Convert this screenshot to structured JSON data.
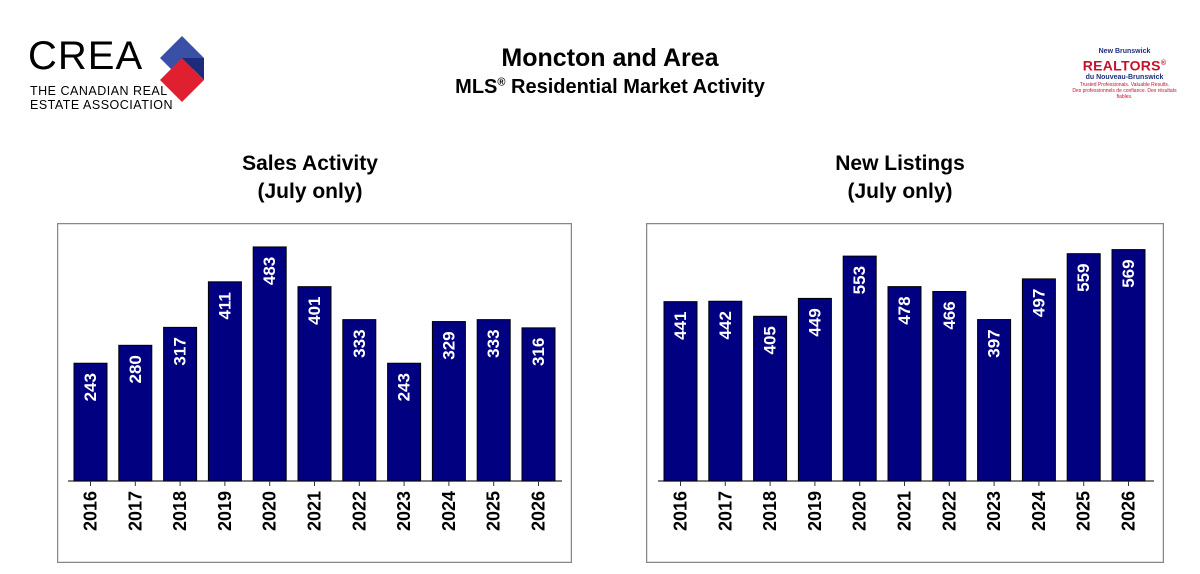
{
  "header": {
    "title": "Moncton and Area",
    "subtitle_prefix": "MLS",
    "subtitle_reg": "®",
    "subtitle_suffix": " Residential Market Activity"
  },
  "logos": {
    "crea": {
      "word": "CREA",
      "line1": "THE CANADIAN REAL",
      "line2": "ESTATE ASSOCIATION",
      "colors": [
        "#3a4fa6",
        "#e02030",
        "#1d2b7c"
      ]
    },
    "nb_realtors": {
      "top": "New Brunswick",
      "main": "REALTORS",
      "reg": "®",
      "bottom": "du Nouveau-Brunswick",
      "tagline1": "Trusted Professionals. Valuable Results.",
      "tagline2": "Des professionnels de confiance. Des résultats fiables."
    }
  },
  "colors": {
    "bar": "#000080",
    "bar_label": "#ffffff",
    "frame": "#888888"
  },
  "chart_data": [
    {
      "type": "bar",
      "title_line1": "Sales Activity",
      "title_line2": "(July only)",
      "categories": [
        "2016",
        "2017",
        "2018",
        "2019",
        "2020",
        "2021",
        "2022",
        "2023",
        "2024",
        "2025",
        "2026"
      ],
      "values": [
        243,
        280,
        317,
        411,
        483,
        401,
        333,
        243,
        329,
        333,
        316
      ],
      "ylim": [
        0,
        520
      ],
      "grid": false,
      "data_labels": "inside-top-rotated",
      "tick_labels": "rotated"
    },
    {
      "type": "bar",
      "title_line1": "New Listings",
      "title_line2": "(July only)",
      "categories": [
        "2016",
        "2017",
        "2018",
        "2019",
        "2020",
        "2021",
        "2022",
        "2023",
        "2024",
        "2025",
        "2026"
      ],
      "values": [
        441,
        442,
        405,
        449,
        553,
        478,
        466,
        397,
        497,
        559,
        569
      ],
      "ylim": [
        0,
        600
      ],
      "grid": false,
      "data_labels": "inside-top-rotated",
      "tick_labels": "rotated"
    }
  ]
}
